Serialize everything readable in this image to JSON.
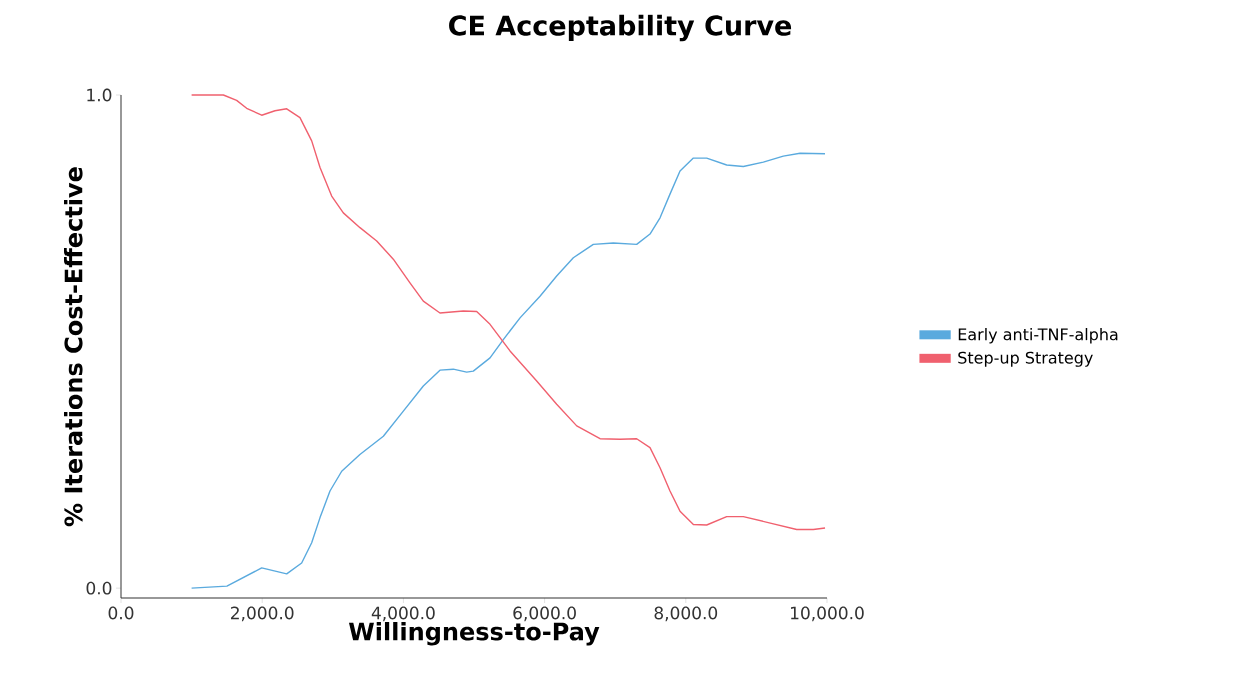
{
  "chart_data": {
    "type": "line",
    "title": "CE Acceptability Curve",
    "xlabel": "Willingness-to-Pay",
    "ylabel": "% Iterations Cost-Effective",
    "xlim": [
      0,
      10000
    ],
    "ylim": [
      -0.02,
      1.0
    ],
    "xticks": [
      {
        "value": 0,
        "label": "0.0"
      },
      {
        "value": 2000,
        "label": "2,000.0"
      },
      {
        "value": 4000,
        "label": "4,000.0"
      },
      {
        "value": 6000,
        "label": "6,000.0"
      },
      {
        "value": 8000,
        "label": "8,000.0"
      },
      {
        "value": 10000,
        "label": "10,000.0"
      }
    ],
    "yticks": [
      {
        "value": 0,
        "label": "0.0"
      },
      {
        "value": 1,
        "label": "1.0"
      }
    ],
    "grid": false,
    "legend": "right",
    "marker": "none",
    "line_style": "solid",
    "series": [
      {
        "name": "Early anti-TNF-alpha",
        "color": "#5aaade",
        "x": [
          1000,
          1500,
          1993,
          2347,
          2559,
          2701,
          2819,
          2960,
          3126,
          3384,
          3716,
          3999,
          4282,
          4518,
          4707,
          4896,
          4990,
          5227,
          5415,
          5652,
          5935,
          6171,
          6407,
          6690,
          6973,
          7304,
          7493,
          7635,
          7776,
          7918,
          8107,
          8296,
          8579,
          8815,
          9098,
          9381,
          9618,
          9972
        ],
        "values": [
          0.0,
          0.004,
          0.041,
          0.029,
          0.051,
          0.092,
          0.143,
          0.197,
          0.237,
          0.271,
          0.308,
          0.359,
          0.41,
          0.442,
          0.444,
          0.438,
          0.44,
          0.467,
          0.504,
          0.548,
          0.592,
          0.633,
          0.67,
          0.697,
          0.7,
          0.697,
          0.718,
          0.751,
          0.799,
          0.846,
          0.872,
          0.872,
          0.858,
          0.855,
          0.864,
          0.876,
          0.882,
          0.881
        ]
      },
      {
        "name": "Step-up Strategy",
        "color": "#f0606e",
        "x": [
          1000,
          1450,
          1638,
          1780,
          1993,
          2181,
          2347,
          2535,
          2701,
          2819,
          2984,
          3149,
          3385,
          3622,
          3857,
          4093,
          4282,
          4518,
          4848,
          5038,
          5227,
          5510,
          5888,
          6171,
          6455,
          6785,
          7068,
          7304,
          7493,
          7635,
          7776,
          7918,
          8107,
          8296,
          8579,
          8815,
          9193,
          9571,
          9806,
          9972
        ],
        "values": [
          1.0,
          1.0,
          0.989,
          0.973,
          0.959,
          0.968,
          0.972,
          0.954,
          0.907,
          0.853,
          0.795,
          0.761,
          0.731,
          0.704,
          0.667,
          0.619,
          0.582,
          0.558,
          0.562,
          0.561,
          0.535,
          0.481,
          0.42,
          0.373,
          0.329,
          0.303,
          0.302,
          0.303,
          0.285,
          0.244,
          0.197,
          0.156,
          0.129,
          0.128,
          0.145,
          0.145,
          0.132,
          0.119,
          0.119,
          0.122
        ]
      }
    ]
  }
}
